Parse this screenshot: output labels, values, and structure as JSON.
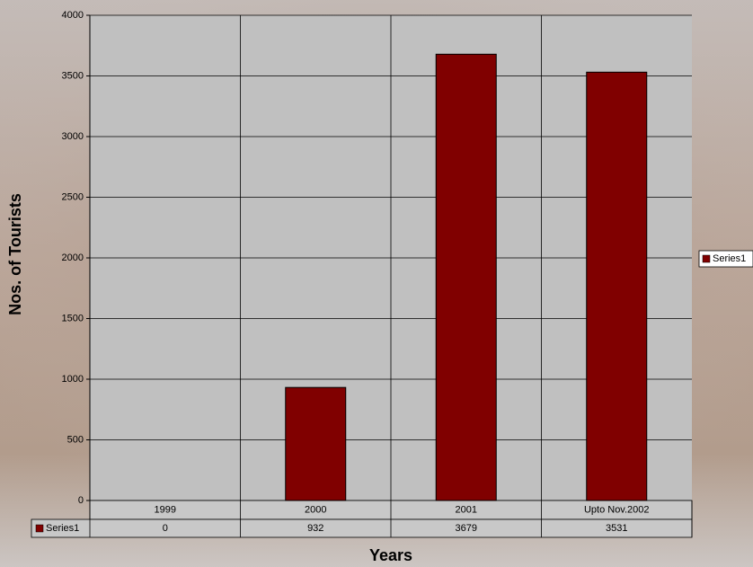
{
  "chart_data": {
    "type": "bar",
    "categories": [
      "1999",
      "2000",
      "2001",
      "Upto Nov.2002"
    ],
    "series": [
      {
        "name": "Series1",
        "color": "#800000",
        "values": [
          0,
          932,
          3679,
          3531
        ]
      }
    ],
    "ylim": [
      0,
      4000
    ],
    "yticks": [
      0,
      500,
      1000,
      1500,
      2000,
      2500,
      3000,
      3500,
      4000
    ],
    "x_label": "Years",
    "y_label": "Nos. of Tourists",
    "grid": true,
    "legend": "right",
    "data_table": true
  }
}
